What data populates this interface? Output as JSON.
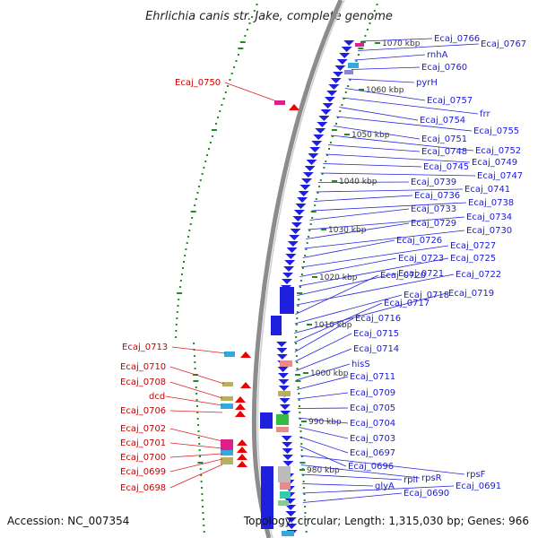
{
  "title": "Ehrlichia canis str. Jake, complete genome",
  "accession": "Accession: NC_007354",
  "topology": "Topology: circular; Length: 1,315,030 bp; Genes: 966",
  "colors": {
    "backbone": "#7a7a7a",
    "gene_forward": "#1f1fe0",
    "gene_reverse": "#ee0000",
    "label_forward": "#1a1adc",
    "label_reverse": "#cc0000",
    "gc_track": "#228b22"
  },
  "kbp_marks": [
    "1070 kbp",
    "1060 kbp",
    "1050 kbp",
    "1040 kbp",
    "1030 kbp",
    "1020 kbp",
    "1010 kbp",
    "1000 kbp",
    "990 kbp",
    "980 kbp"
  ],
  "right_labels": [
    "Ecaj_0766",
    "Ecaj_0767",
    "rnhA",
    "Ecaj_0760",
    "pyrH",
    "Ecaj_0757",
    "frr",
    "Ecaj_0754",
    "Ecaj_0755",
    "Ecaj_0751",
    "Ecaj_0752",
    "Ecaj_0748",
    "Ecaj_0749",
    "Ecaj_0745",
    "Ecaj_0747",
    "Ecaj_0739",
    "Ecaj_0741",
    "Ecaj_0736",
    "Ecaj_0738",
    "Ecaj_0733",
    "Ecaj_0734",
    "Ecaj_0729",
    "Ecaj_0730",
    "Ecaj_0726",
    "Ecaj_0727",
    "Ecaj_0723",
    "Ecaj_0725",
    "Ecaj_0721",
    "Ecaj_0722",
    "Ecaj_0720",
    "Ecaj_0718",
    "Ecaj_0719",
    "Ecaj_0717",
    "Ecaj_0716",
    "Ecaj_0715",
    "Ecaj_0714",
    "hisS",
    "Ecaj_0711",
    "Ecaj_0709",
    "Ecaj_0705",
    "Ecaj_0704",
    "Ecaj_0703",
    "Ecaj_0697",
    "Ecaj_0696",
    "rpsF",
    "rpsR",
    "rplI",
    "glyA",
    "Ecaj_0691",
    "Ecaj_0690"
  ],
  "left_labels": [
    "Ecaj_0750",
    "Ecaj_0713",
    "Ecaj_0710",
    "Ecaj_0708",
    "dcd",
    "Ecaj_0706",
    "Ecaj_0702",
    "Ecaj_0701",
    "Ecaj_0700",
    "Ecaj_0699",
    "Ecaj_0698"
  ]
}
